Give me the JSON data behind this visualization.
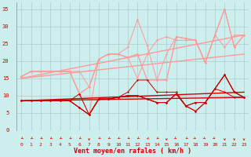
{
  "bg_color": "#cceeed",
  "grid_color": "#aacccc",
  "xlabel": "Vent moyen/en rafales ( km/h )",
  "xlabel_color": "#cc0000",
  "tick_color": "#cc0000",
  "arrow_color": "#cc2200",
  "x_ticks": [
    0,
    1,
    2,
    3,
    4,
    5,
    6,
    7,
    8,
    9,
    10,
    11,
    12,
    13,
    14,
    15,
    16,
    17,
    18,
    19,
    20,
    21,
    22,
    23
  ],
  "ylim": [
    0,
    37
  ],
  "yticks": [
    0,
    5,
    10,
    15,
    20,
    25,
    30,
    35
  ],
  "light_pink": "#ff9999",
  "dark_red": "#cc0000",
  "line1_y": [
    15.5,
    17,
    17,
    17,
    17,
    17,
    17,
    12.5,
    20.5,
    22,
    22,
    21,
    15,
    22,
    26,
    27,
    26,
    26,
    26,
    19.5,
    27.5,
    24,
    27.5,
    27.5
  ],
  "line2_y": [
    15.5,
    17,
    17,
    17,
    17,
    17,
    10.5,
    12.5,
    20.5,
    22,
    22,
    24,
    32,
    24.5,
    14.5,
    22,
    27,
    26.5,
    26,
    19.5,
    27.5,
    35,
    24,
    27.5
  ],
  "line3_y": [
    15.5,
    17,
    17,
    17,
    17,
    17,
    10.5,
    12.5,
    20.5,
    22,
    22,
    21,
    22,
    14.5,
    14.5,
    14.5,
    27,
    26.5,
    26,
    19.5,
    27.5,
    35,
    24,
    27.5
  ],
  "line4_y": [
    15.5,
    17,
    17,
    17,
    17,
    17,
    10.5,
    4.5,
    20.5,
    22,
    22,
    21,
    22,
    14.5,
    14.5,
    14.5,
    27,
    26.5,
    26,
    19.5,
    27.5,
    35,
    24,
    27.5
  ],
  "line5_y": [
    8.5,
    8.5,
    8.5,
    8.5,
    8.5,
    8.5,
    10.5,
    4.5,
    9,
    9,
    9.5,
    11,
    14.5,
    14.5,
    11,
    11,
    11,
    7,
    8,
    8,
    12,
    16,
    11,
    9.5
  ],
  "line6_y": [
    8.5,
    8.5,
    8.5,
    8.5,
    8.5,
    8.5,
    6.5,
    4.5,
    9,
    9,
    9.5,
    10,
    10,
    9,
    8,
    8,
    10.5,
    7,
    8,
    8,
    12,
    16,
    11,
    9.5
  ],
  "line7_y": [
    8.5,
    8.5,
    8.5,
    8.5,
    8.5,
    8.5,
    6.5,
    4.5,
    9,
    9,
    9.5,
    10,
    10,
    9,
    8,
    8,
    10.5,
    7,
    5.5,
    8,
    12,
    16,
    11,
    9.5
  ],
  "line8_y": [
    8.5,
    8.5,
    8.5,
    8.5,
    8.5,
    8.5,
    6.5,
    4.5,
    9,
    9,
    9.5,
    10,
    10,
    9,
    8,
    8,
    10.5,
    7,
    5.5,
    8,
    12,
    11,
    9.5,
    9.5
  ],
  "trend1_y": [
    15.0,
    27.5
  ],
  "trend2_y": [
    15.0,
    22.0
  ],
  "trend3_y": [
    8.5,
    11.0
  ],
  "trend4_y": [
    8.5,
    9.5
  ],
  "arrow_angles": [
    225,
    225,
    225,
    225,
    225,
    225,
    225,
    270,
    225,
    225,
    225,
    225,
    225,
    210,
    225,
    270,
    315,
    225,
    315,
    315,
    315,
    270,
    270,
    270
  ]
}
